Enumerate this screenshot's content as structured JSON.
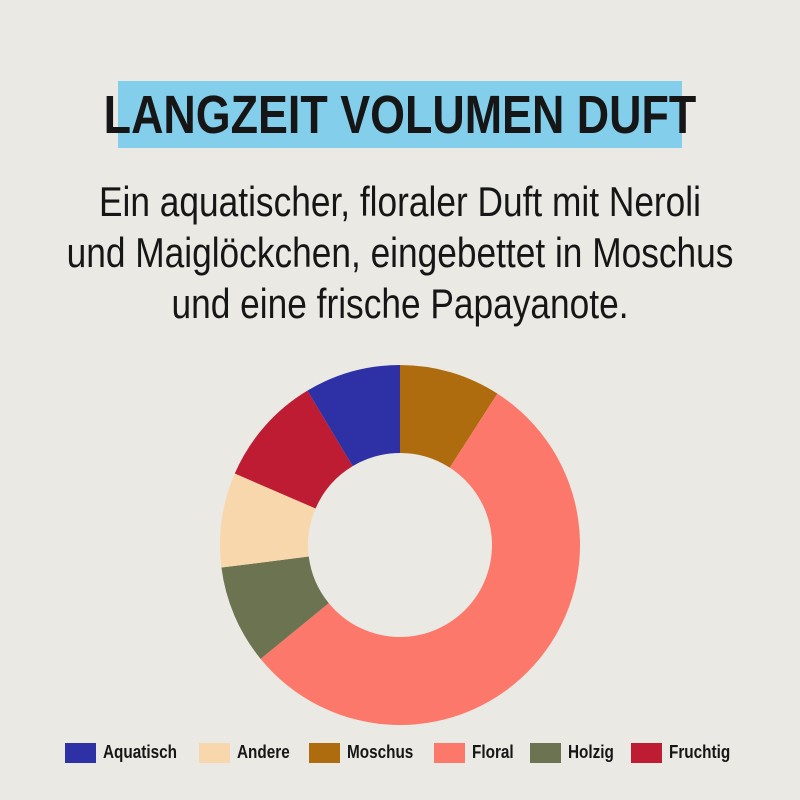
{
  "page": {
    "background": "#ebe9e4",
    "text_color": "#161616"
  },
  "header": {
    "title": "LANGZEIT VOLUMEN DUFT",
    "highlight_color": "#82ceeb"
  },
  "description": {
    "lines": [
      "Ein aquatischer, floraler Duft mit Neroli",
      "und Maiglöckchen, eingebettet in Moschus",
      "und eine frische Papayanote."
    ]
  },
  "chart_data": {
    "type": "pie",
    "style": "donut",
    "units": "percent",
    "start_angle_deg": 0,
    "direction": "clockwise",
    "inner_radius_ratio": 0.511,
    "grid": false,
    "legend_position": "bottom",
    "slices": [
      {
        "label": "Moschus",
        "value": 9.1,
        "color": "#af6c0f"
      },
      {
        "label": "Floral",
        "value": 55.0,
        "color": "#fc786a"
      },
      {
        "label": "Holzig",
        "value": 8.9,
        "color": "#6b7350"
      },
      {
        "label": "Andere",
        "value": 8.5,
        "color": "#f9d7ac"
      },
      {
        "label": "Fruchtig",
        "value": 9.9,
        "color": "#bd1c33"
      },
      {
        "label": "Aquatisch",
        "value": 8.6,
        "color": "#2e30a6"
      }
    ],
    "legend_order": [
      "Aquatisch",
      "Andere",
      "Moschus",
      "Floral",
      "Holzig",
      "Fruchtig"
    ]
  }
}
